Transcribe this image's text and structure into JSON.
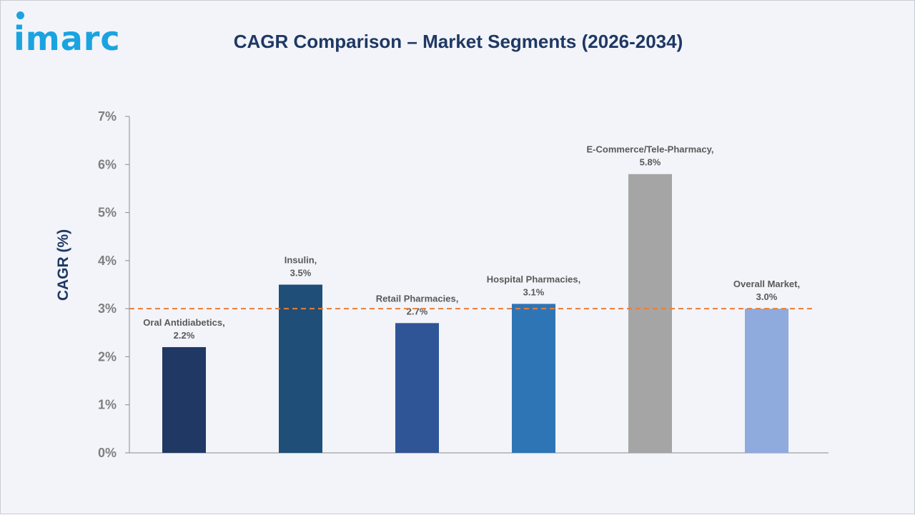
{
  "logo_text": "imarc",
  "chart_data": {
    "type": "bar",
    "title": "CAGR Comparison – Market Segments (2026-2034)",
    "ylabel": "CAGR (%)",
    "xlabel": "",
    "ylim": [
      0,
      7
    ],
    "yticks": [
      "0%",
      "1%",
      "2%",
      "3%",
      "4%",
      "5%",
      "6%",
      "7%"
    ],
    "grid": false,
    "categories": [
      "Oral Antidiabetics,",
      "Insulin,",
      "Retail Pharmacies,",
      "Hospital Pharmacies,",
      "E-Commerce/Tele-Pharmacy,",
      "Overall Market,"
    ],
    "values": [
      2.2,
      3.5,
      2.7,
      3.1,
      5.8,
      3.0
    ],
    "value_labels": [
      "2.2%",
      "3.5%",
      "2.7%",
      "3.1%",
      "5.8%",
      "3.0%"
    ],
    "colors": [
      "#1f3864",
      "#1f4e79",
      "#2f5597",
      "#2e75b6",
      "#a5a5a5",
      "#8faadc"
    ],
    "reference_line": {
      "value": 3.0,
      "style": "dashed",
      "color": "#ed7d31"
    }
  }
}
